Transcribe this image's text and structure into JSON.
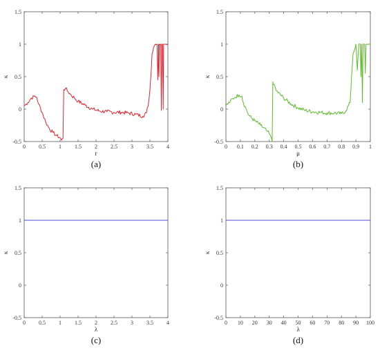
{
  "chart_data": [
    {
      "type": "line",
      "caption": "(a)",
      "xlabel": "r",
      "ylabel": "κ",
      "xlim": [
        0,
        4
      ],
      "ylim": [
        -0.5,
        1.5
      ],
      "xticks": [
        0,
        0.5,
        1,
        1.5,
        2,
        2.5,
        3,
        3.5,
        4
      ],
      "xtick_labels": [
        "0",
        "0.5",
        "1",
        "1.5",
        "2",
        "2.5",
        "3",
        "3.5",
        "4"
      ],
      "yticks": [
        -0.5,
        0,
        0.5,
        1,
        1.5
      ],
      "ytick_labels": [
        "-0.5",
        "0",
        "0.5",
        "1",
        "1.5"
      ],
      "color": "#e3222e",
      "noisy": true,
      "x": [
        0,
        0.1,
        0.2,
        0.3,
        0.35,
        0.4,
        0.5,
        0.6,
        0.7,
        0.8,
        0.9,
        1.0,
        1.04,
        1.08,
        1.1,
        1.15,
        1.2,
        1.3,
        1.4,
        1.5,
        1.7,
        1.9,
        2.1,
        2.3,
        2.5,
        2.7,
        2.9,
        3.1,
        3.3,
        3.4,
        3.45,
        3.5,
        3.53,
        3.56,
        3.6,
        3.65,
        3.7,
        3.72,
        3.74,
        3.75,
        3.76,
        3.8,
        3.82,
        3.83,
        3.85,
        3.87,
        3.88,
        3.9,
        4.0
      ],
      "y": [
        0.05,
        0.1,
        0.17,
        0.2,
        0.18,
        0.08,
        -0.05,
        -0.2,
        -0.3,
        -0.36,
        -0.41,
        -0.44,
        -0.48,
        -0.45,
        0.3,
        0.32,
        0.28,
        0.22,
        0.17,
        0.12,
        0.06,
        0.0,
        -0.03,
        -0.04,
        -0.05,
        -0.05,
        -0.06,
        -0.08,
        -0.11,
        -0.06,
        0.05,
        0.3,
        0.55,
        0.85,
        0.95,
        1.0,
        1.0,
        0.45,
        1.0,
        0.5,
        1.0,
        1.0,
        -0.02,
        1.0,
        1.0,
        0.0,
        1.0,
        1.0,
        1.0
      ]
    },
    {
      "type": "line",
      "caption": "(b)",
      "xlabel": "μ",
      "ylabel": "κ",
      "xlim": [
        0,
        1
      ],
      "ylim": [
        -0.5,
        1.5
      ],
      "xticks": [
        0,
        0.1,
        0.2,
        0.3,
        0.4,
        0.5,
        0.6,
        0.7,
        0.8,
        0.9,
        1
      ],
      "xtick_labels": [
        "0",
        "0.1",
        "0.2",
        "0.3",
        "0.4",
        "0.5",
        "0.6",
        "0.7",
        "0.8",
        "0.9",
        "1"
      ],
      "yticks": [
        -0.5,
        0,
        0.5,
        1,
        1.5
      ],
      "ytick_labels": [
        "-0.5",
        "0",
        "0.5",
        "1",
        "1.5"
      ],
      "color": "#5dbb2b",
      "noisy": true,
      "x": [
        0,
        0.03,
        0.06,
        0.09,
        0.11,
        0.12,
        0.14,
        0.16,
        0.2,
        0.24,
        0.28,
        0.3,
        0.31,
        0.32,
        0.325,
        0.33,
        0.35,
        0.4,
        0.45,
        0.5,
        0.55,
        0.6,
        0.65,
        0.7,
        0.75,
        0.8,
        0.83,
        0.86,
        0.87,
        0.88,
        0.9,
        0.91,
        0.92,
        0.93,
        0.935,
        0.94,
        0.945,
        0.95,
        0.96,
        0.965,
        0.97,
        0.98,
        1.0
      ],
      "y": [
        0.05,
        0.12,
        0.18,
        0.22,
        0.2,
        0.1,
        0.0,
        -0.1,
        -0.18,
        -0.25,
        -0.33,
        -0.38,
        -0.42,
        -0.5,
        0.42,
        0.38,
        0.28,
        0.17,
        0.08,
        0.02,
        -0.02,
        -0.04,
        -0.05,
        -0.06,
        -0.06,
        -0.07,
        -0.03,
        0.1,
        0.5,
        0.85,
        1.0,
        0.6,
        1.0,
        1.0,
        0.5,
        1.0,
        0.1,
        1.0,
        1.0,
        0.55,
        1.0,
        1.0,
        1.0
      ]
    },
    {
      "type": "line",
      "caption": "(c)",
      "xlabel": "λ",
      "ylabel": "κ",
      "xlim": [
        0,
        4
      ],
      "ylim": [
        -0.5,
        1.5
      ],
      "xticks": [
        0,
        0.5,
        1,
        1.5,
        2,
        2.5,
        3,
        3.5,
        4
      ],
      "xtick_labels": [
        "0",
        "0.5",
        "1",
        "1.5",
        "2",
        "2.5",
        "3",
        "3.5",
        "4"
      ],
      "yticks": [
        -0.5,
        0,
        0.5,
        1,
        1.5
      ],
      "ytick_labels": [
        "-0.5",
        "0",
        "0.5",
        "1",
        "1.5"
      ],
      "color": "#4b4bd8",
      "noisy": false,
      "x": [
        0,
        4
      ],
      "y": [
        1,
        1
      ]
    },
    {
      "type": "line",
      "caption": "(d)",
      "xlabel": "λ",
      "ylabel": "κ",
      "xlim": [
        0,
        100
      ],
      "ylim": [
        -0.5,
        1.5
      ],
      "xticks": [
        0,
        10,
        20,
        30,
        40,
        50,
        60,
        70,
        80,
        90,
        100
      ],
      "xtick_labels": [
        "0",
        "10",
        "20",
        "30",
        "40",
        "50",
        "60",
        "70",
        "80",
        "90",
        "100"
      ],
      "yticks": [
        -0.5,
        0,
        0.5,
        1,
        1.5
      ],
      "ytick_labels": [
        "-0.5",
        "0",
        "0.5",
        "1",
        "1.5"
      ],
      "color": "#4b4bd8",
      "noisy": false,
      "x": [
        0,
        100
      ],
      "y": [
        1,
        1
      ]
    }
  ]
}
